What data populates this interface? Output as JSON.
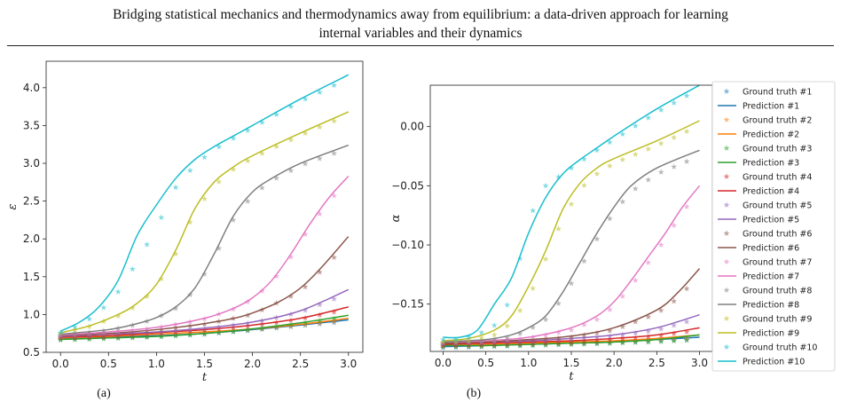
{
  "header": {
    "title_line1": "Bridging statistical mechanics and thermodynamics away from equilibrium: a data-driven approach for learning",
    "title_line2": "internal variables and their dynamics"
  },
  "colors": [
    "#1f77b4",
    "#ff7f0e",
    "#2ca02c",
    "#d62728",
    "#9467bd",
    "#8c564b",
    "#e377c2",
    "#7f7f7f",
    "#bcbd22",
    "#17becf"
  ],
  "chart_data": [
    {
      "type": "line",
      "caption": "(a)",
      "xlabel": "t",
      "ylabel": "ε",
      "xlim": [
        -0.15,
        3.15
      ],
      "ylim": [
        0.5,
        4.35
      ],
      "xticks": [
        0.0,
        0.5,
        1.0,
        1.5,
        2.0,
        2.5,
        3.0
      ],
      "xtick_labels": [
        "0.0",
        "0.5",
        "1.0",
        "1.5",
        "2.0",
        "2.5",
        "3.0"
      ],
      "yticks": [
        0.5,
        1.0,
        1.5,
        2.0,
        2.5,
        3.0,
        3.5,
        4.0
      ],
      "ytick_labels": [
        "0.5",
        "1.0",
        "1.5",
        "2.0",
        "2.5",
        "3.0",
        "3.5",
        "4.0"
      ],
      "series": [
        {
          "index": 1,
          "x": [
            0,
            0.5,
            1,
            1.5,
            2,
            2.5,
            3
          ],
          "y": [
            0.68,
            0.7,
            0.72,
            0.75,
            0.8,
            0.86,
            0.93
          ],
          "gt": [
            0.67,
            0.69,
            0.71,
            0.74,
            0.79,
            0.85,
            0.91
          ]
        },
        {
          "index": 2,
          "x": [
            0,
            0.5,
            1,
            1.5,
            2,
            2.5,
            3
          ],
          "y": [
            0.69,
            0.71,
            0.74,
            0.77,
            0.81,
            0.87,
            0.95
          ],
          "gt": [
            0.68,
            0.7,
            0.73,
            0.76,
            0.8,
            0.86,
            0.93
          ]
        },
        {
          "index": 3,
          "x": [
            0,
            0.5,
            1,
            1.5,
            2,
            2.5,
            3
          ],
          "y": [
            0.67,
            0.69,
            0.71,
            0.75,
            0.81,
            0.89,
            0.99
          ],
          "gt": [
            0.66,
            0.68,
            0.7,
            0.74,
            0.8,
            0.88,
            0.97
          ]
        },
        {
          "index": 4,
          "x": [
            0,
            0.5,
            1,
            1.5,
            2,
            2.5,
            3
          ],
          "y": [
            0.7,
            0.72,
            0.76,
            0.8,
            0.86,
            0.95,
            1.1
          ],
          "gt": [
            0.69,
            0.71,
            0.75,
            0.79,
            0.85,
            0.94,
            1.07
          ]
        },
        {
          "index": 5,
          "x": [
            0,
            0.5,
            1,
            1.5,
            2,
            2.5,
            3
          ],
          "y": [
            0.71,
            0.74,
            0.77,
            0.82,
            0.9,
            1.05,
            1.33
          ],
          "gt": [
            0.7,
            0.73,
            0.76,
            0.81,
            0.89,
            1.03,
            1.28
          ]
        },
        {
          "index": 6,
          "x": [
            0,
            0.5,
            1,
            1.5,
            2,
            2.5,
            3
          ],
          "y": [
            0.72,
            0.75,
            0.8,
            0.88,
            1.02,
            1.35,
            2.03
          ],
          "gt": [
            0.71,
            0.74,
            0.79,
            0.87,
            1.0,
            1.3,
            1.95
          ]
        },
        {
          "index": 7,
          "x": [
            0,
            0.5,
            1,
            1.5,
            1.8,
            2.0,
            2.2,
            2.4,
            2.6,
            2.8,
            3.0
          ],
          "y": [
            0.73,
            0.77,
            0.83,
            0.95,
            1.08,
            1.22,
            1.45,
            1.8,
            2.2,
            2.55,
            2.83
          ],
          "gt": [
            0.72,
            0.76,
            0.82,
            0.94,
            1.07,
            1.2,
            1.42,
            1.76,
            2.16,
            2.5,
            2.78
          ]
        },
        {
          "index": 8,
          "x": [
            0,
            0.5,
            0.8,
            1.0,
            1.2,
            1.4,
            1.6,
            1.8,
            2.0,
            2.2,
            2.5,
            3.0
          ],
          "y": [
            0.74,
            0.8,
            0.88,
            0.96,
            1.1,
            1.35,
            1.8,
            2.3,
            2.62,
            2.8,
            3.0,
            3.24
          ],
          "gt": [
            0.73,
            0.79,
            0.87,
            0.95,
            1.08,
            1.32,
            1.75,
            2.25,
            2.58,
            2.77,
            2.97,
            3.2
          ]
        },
        {
          "index": 9,
          "x": [
            0,
            0.3,
            0.6,
            0.8,
            1.0,
            1.2,
            1.4,
            1.6,
            1.8,
            2.0,
            2.5,
            3.0
          ],
          "y": [
            0.76,
            0.85,
            1.0,
            1.15,
            1.4,
            1.85,
            2.4,
            2.75,
            2.95,
            3.1,
            3.4,
            3.68
          ],
          "gt": [
            0.75,
            0.84,
            0.98,
            1.12,
            1.36,
            1.8,
            2.36,
            2.7,
            2.92,
            3.07,
            3.37,
            3.64
          ]
        },
        {
          "index": 10,
          "x": [
            0,
            0.2,
            0.4,
            0.6,
            0.8,
            1.0,
            1.2,
            1.4,
            1.6,
            1.8,
            2.0,
            2.5,
            3.0
          ],
          "y": [
            0.78,
            0.9,
            1.1,
            1.45,
            2.05,
            2.45,
            2.8,
            3.05,
            3.22,
            3.36,
            3.5,
            3.85,
            4.17
          ],
          "gt": [
            0.76,
            0.86,
            1.02,
            1.3,
            1.7,
            2.15,
            2.68,
            2.98,
            3.18,
            3.33,
            3.47,
            3.82,
            4.12
          ]
        }
      ]
    },
    {
      "type": "line",
      "caption": "(b)",
      "xlabel": "t",
      "ylabel": "α",
      "xlim": [
        -0.15,
        3.15
      ],
      "ylim": [
        -0.19,
        0.035
      ],
      "xticks": [
        0.0,
        0.5,
        1.0,
        1.5,
        2.0,
        2.5,
        3.0
      ],
      "xtick_labels": [
        "0.0",
        "0.5",
        "1.0",
        "1.5",
        "2.0",
        "2.5",
        "3.0"
      ],
      "yticks": [
        -0.15,
        -0.1,
        -0.05,
        0.0
      ],
      "ytick_labels": [
        "−0.15",
        "−0.10",
        "−0.05",
        "0.00"
      ],
      "series": [
        {
          "index": 1,
          "x": [
            0,
            0.5,
            1,
            1.5,
            2,
            2.5,
            3
          ],
          "y": [
            -0.186,
            -0.185,
            -0.184,
            -0.183,
            -0.182,
            -0.18,
            -0.178
          ],
          "gt": [
            -0.187,
            -0.186,
            -0.185,
            -0.184,
            -0.183,
            -0.181,
            -0.18
          ]
        },
        {
          "index": 2,
          "x": [
            0,
            0.5,
            1,
            1.5,
            2,
            2.5,
            3
          ],
          "y": [
            -0.185,
            -0.184,
            -0.183,
            -0.182,
            -0.181,
            -0.179,
            -0.176
          ],
          "gt": [
            -0.186,
            -0.185,
            -0.184,
            -0.183,
            -0.182,
            -0.18,
            -0.178
          ]
        },
        {
          "index": 3,
          "x": [
            0,
            0.5,
            1,
            1.5,
            2,
            2.5,
            3
          ],
          "y": [
            -0.185,
            -0.185,
            -0.184,
            -0.183,
            -0.182,
            -0.18,
            -0.176
          ],
          "gt": [
            -0.186,
            -0.186,
            -0.185,
            -0.184,
            -0.183,
            -0.182,
            -0.18
          ]
        },
        {
          "index": 4,
          "x": [
            0,
            0.5,
            1,
            1.5,
            2,
            2.5,
            3
          ],
          "y": [
            -0.184,
            -0.183,
            -0.182,
            -0.181,
            -0.179,
            -0.176,
            -0.17
          ],
          "gt": [
            -0.185,
            -0.184,
            -0.183,
            -0.182,
            -0.18,
            -0.177,
            -0.172
          ]
        },
        {
          "index": 5,
          "x": [
            0,
            0.5,
            1,
            1.5,
            2,
            2.5,
            3
          ],
          "y": [
            -0.183,
            -0.182,
            -0.181,
            -0.179,
            -0.176,
            -0.17,
            -0.159
          ],
          "gt": [
            -0.184,
            -0.183,
            -0.182,
            -0.18,
            -0.177,
            -0.172,
            -0.162
          ]
        },
        {
          "index": 6,
          "x": [
            0,
            0.5,
            1,
            1.5,
            2,
            2.5,
            2.75,
            3
          ],
          "y": [
            -0.183,
            -0.182,
            -0.18,
            -0.177,
            -0.17,
            -0.155,
            -0.14,
            -0.12
          ],
          "gt": [
            -0.184,
            -0.183,
            -0.181,
            -0.178,
            -0.172,
            -0.158,
            -0.145,
            -0.125
          ]
        },
        {
          "index": 7,
          "x": [
            0,
            0.5,
            1,
            1.5,
            1.8,
            2.0,
            2.2,
            2.4,
            2.6,
            2.8,
            3.0
          ],
          "y": [
            -0.182,
            -0.181,
            -0.178,
            -0.17,
            -0.16,
            -0.148,
            -0.13,
            -0.11,
            -0.09,
            -0.068,
            -0.05
          ],
          "gt": [
            -0.183,
            -0.182,
            -0.179,
            -0.172,
            -0.163,
            -0.152,
            -0.135,
            -0.115,
            -0.095,
            -0.072,
            -0.055
          ]
        },
        {
          "index": 8,
          "x": [
            0,
            0.5,
            0.8,
            1.0,
            1.2,
            1.4,
            1.6,
            1.8,
            2.0,
            2.2,
            2.5,
            3.0
          ],
          "y": [
            -0.182,
            -0.18,
            -0.176,
            -0.17,
            -0.16,
            -0.14,
            -0.115,
            -0.09,
            -0.068,
            -0.05,
            -0.035,
            -0.02
          ],
          "gt": [
            -0.183,
            -0.181,
            -0.178,
            -0.172,
            -0.163,
            -0.145,
            -0.12,
            -0.095,
            -0.072,
            -0.055,
            -0.04,
            -0.025
          ]
        },
        {
          "index": 9,
          "x": [
            0,
            0.3,
            0.6,
            0.8,
            1.0,
            1.2,
            1.4,
            1.6,
            1.8,
            2.0,
            2.5,
            3.0
          ],
          "y": [
            -0.181,
            -0.179,
            -0.172,
            -0.16,
            -0.135,
            -0.105,
            -0.07,
            -0.048,
            -0.035,
            -0.027,
            -0.012,
            0.005
          ],
          "gt": [
            -0.182,
            -0.181,
            -0.176,
            -0.166,
            -0.145,
            -0.112,
            -0.078,
            -0.053,
            -0.04,
            -0.031,
            -0.016,
            0.001
          ]
        },
        {
          "index": 10,
          "x": [
            0,
            0.2,
            0.4,
            0.6,
            0.8,
            1.0,
            1.2,
            1.4,
            1.6,
            1.8,
            2.0,
            2.5,
            3.0
          ],
          "y": [
            -0.178,
            -0.178,
            -0.172,
            -0.15,
            -0.128,
            -0.09,
            -0.06,
            -0.04,
            -0.028,
            -0.018,
            -0.008,
            0.015,
            0.035
          ],
          "gt": [
            -0.18,
            -0.18,
            -0.176,
            -0.168,
            -0.145,
            -0.078,
            -0.05,
            -0.04,
            -0.03,
            -0.02,
            -0.011,
            0.012,
            0.032
          ]
        }
      ]
    }
  ],
  "legend": {
    "placement": "right",
    "entries": [
      {
        "gt_label": "Ground truth #1",
        "pred_label": "Prediction #1"
      },
      {
        "gt_label": "Ground truth #2",
        "pred_label": "Prediction #2"
      },
      {
        "gt_label": "Ground truth #3",
        "pred_label": "Prediction #3"
      },
      {
        "gt_label": "Ground truth #4",
        "pred_label": "Prediction #4"
      },
      {
        "gt_label": "Ground truth #5",
        "pred_label": "Prediction #5"
      },
      {
        "gt_label": "Ground truth #6",
        "pred_label": "Prediction #6"
      },
      {
        "gt_label": "Ground truth #7",
        "pred_label": "Prediction #7"
      },
      {
        "gt_label": "Ground truth #8",
        "pred_label": "Prediction #8"
      },
      {
        "gt_label": "Ground truth #9",
        "pred_label": "Prediction #9"
      },
      {
        "gt_label": "Ground truth #10",
        "pred_label": "Prediction #10"
      }
    ]
  }
}
